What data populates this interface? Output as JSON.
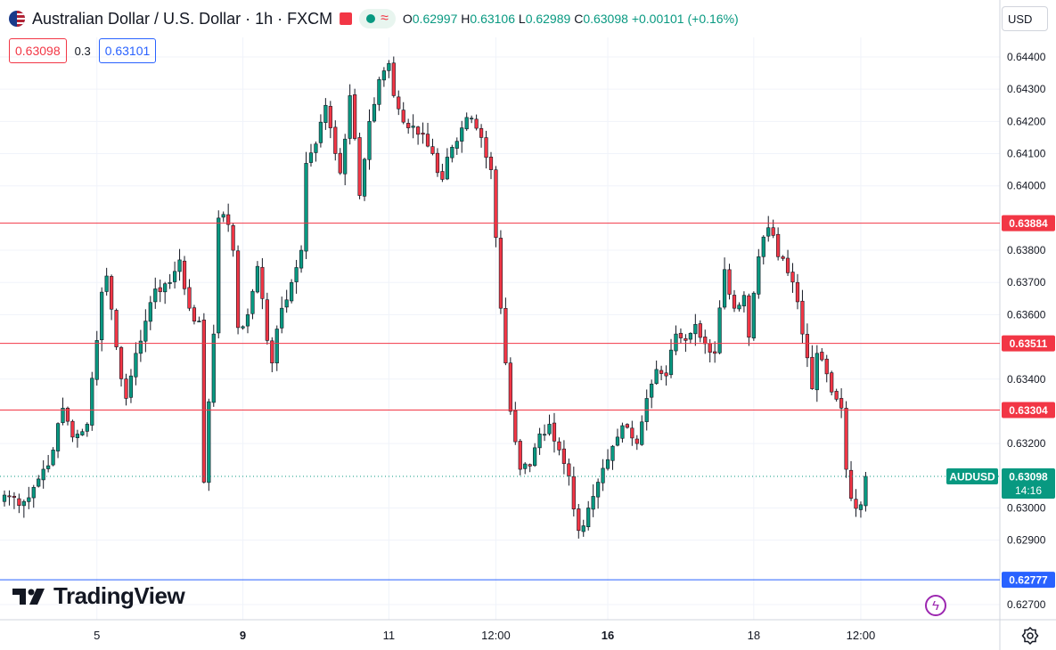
{
  "header": {
    "title": "Australian Dollar / U.S. Dollar · 1h · FXCM",
    "ohlc": [
      {
        "k": "O",
        "v": "0.62997"
      },
      {
        "k": "H",
        "v": "0.63106"
      },
      {
        "k": "L",
        "v": "0.62989"
      },
      {
        "k": "C",
        "v": "0.63098"
      }
    ],
    "change": "+0.00101 (+0.16%)",
    "bid": "0.63098",
    "spread": "0.3",
    "ask": "0.63101",
    "currency": "USD"
  },
  "branding": {
    "logo_text": "TradingView"
  },
  "colors": {
    "up": "#089981",
    "down": "#f23645",
    "blue": "#2962ff",
    "candle_up_body": "#089981",
    "candle_down_body": "#f23645"
  },
  "chart_data": {
    "type": "candlestick",
    "symbol": "AUDUSD",
    "timeframe": "1h",
    "ylim": [
      0.6265,
      0.645
    ],
    "y_ticks": [
      "0.64400",
      "0.64300",
      "0.64200",
      "0.64100",
      "0.64000",
      "0.63800",
      "0.63700",
      "0.63600",
      "0.63400",
      "0.63200",
      "0.63000",
      "0.62900",
      "0.62700"
    ],
    "x_ticks": [
      "5",
      "9",
      "11",
      "12:00",
      "16",
      "18",
      "12:00"
    ],
    "x_tick_index": [
      19,
      49,
      79,
      101,
      124,
      154,
      176
    ],
    "last_price": {
      "label": "AUDUSD",
      "value": "0.63098",
      "countdown": "14:16"
    },
    "horizontal_lines": [
      {
        "value": 0.63884,
        "label": "0.63884",
        "color": "#f23645"
      },
      {
        "value": 0.63511,
        "label": "0.63511",
        "color": "#f23645"
      },
      {
        "value": 0.63304,
        "label": "0.63304",
        "color": "#f23645"
      },
      {
        "value": 0.62777,
        "label": "0.62777",
        "color": "#2962ff"
      }
    ],
    "anchors": [
      [
        0,
        0.6304
      ],
      [
        4,
        0.6302
      ],
      [
        7,
        0.6309
      ],
      [
        10,
        0.6318
      ],
      [
        12,
        0.6331
      ],
      [
        14,
        0.6322
      ],
      [
        17,
        0.6326
      ],
      [
        19,
        0.6352
      ],
      [
        20,
        0.6367
      ],
      [
        21,
        0.6372
      ],
      [
        23,
        0.635
      ],
      [
        25,
        0.6334
      ],
      [
        27,
        0.6348
      ],
      [
        29,
        0.6358
      ],
      [
        31,
        0.6368
      ],
      [
        34,
        0.637
      ],
      [
        36,
        0.6377
      ],
      [
        38,
        0.6362
      ],
      [
        40,
        0.6358
      ],
      [
        41,
        0.6308
      ],
      [
        43,
        0.6354
      ],
      [
        44,
        0.639
      ],
      [
        46,
        0.6388
      ],
      [
        47,
        0.638
      ],
      [
        48,
        0.6356
      ],
      [
        50,
        0.636
      ],
      [
        52,
        0.6375
      ],
      [
        53,
        0.6365
      ],
      [
        54,
        0.6352
      ],
      [
        55,
        0.6345
      ],
      [
        57,
        0.6362
      ],
      [
        59,
        0.637
      ],
      [
        61,
        0.638
      ],
      [
        62,
        0.6407
      ],
      [
        64,
        0.6413
      ],
      [
        66,
        0.6425
      ],
      [
        67,
        0.6418
      ],
      [
        69,
        0.6404
      ],
      [
        71,
        0.6428
      ],
      [
        73,
        0.6397
      ],
      [
        75,
        0.642
      ],
      [
        77,
        0.6433
      ],
      [
        79,
        0.6438
      ],
      [
        80,
        0.6428
      ],
      [
        83,
        0.6418
      ],
      [
        86,
        0.6416
      ],
      [
        88,
        0.641
      ],
      [
        90,
        0.6402
      ],
      [
        92,
        0.6412
      ],
      [
        94,
        0.6418
      ],
      [
        96,
        0.6421
      ],
      [
        98,
        0.6415
      ],
      [
        100,
        0.6405
      ],
      [
        102,
        0.6362
      ],
      [
        103,
        0.6345
      ],
      [
        104,
        0.633
      ],
      [
        106,
        0.6312
      ],
      [
        108,
        0.6313
      ],
      [
        110,
        0.6323
      ],
      [
        112,
        0.6326
      ],
      [
        114,
        0.6318
      ],
      [
        116,
        0.631
      ],
      [
        118,
        0.6293
      ],
      [
        120,
        0.63
      ],
      [
        122,
        0.6308
      ],
      [
        124,
        0.6315
      ],
      [
        126,
        0.6322
      ],
      [
        128,
        0.6325
      ],
      [
        130,
        0.632
      ],
      [
        132,
        0.6334
      ],
      [
        134,
        0.6343
      ],
      [
        136,
        0.6341
      ],
      [
        138,
        0.6354
      ],
      [
        140,
        0.6352
      ],
      [
        142,
        0.6357
      ],
      [
        144,
        0.6351
      ],
      [
        146,
        0.6348
      ],
      [
        148,
        0.6374
      ],
      [
        150,
        0.6362
      ],
      [
        152,
        0.6366
      ],
      [
        153,
        0.6353
      ],
      [
        155,
        0.6378
      ],
      [
        157,
        0.6387
      ],
      [
        159,
        0.6378
      ],
      [
        161,
        0.6373
      ],
      [
        163,
        0.6364
      ],
      [
        164,
        0.6354
      ],
      [
        166,
        0.6337
      ],
      [
        167,
        0.6348
      ],
      [
        168,
        0.6346
      ],
      [
        170,
        0.6336
      ],
      [
        172,
        0.6331
      ],
      [
        173,
        0.6312
      ],
      [
        174,
        0.6303
      ],
      [
        176,
        0.6301
      ],
      [
        177,
        0.631
      ]
    ]
  }
}
